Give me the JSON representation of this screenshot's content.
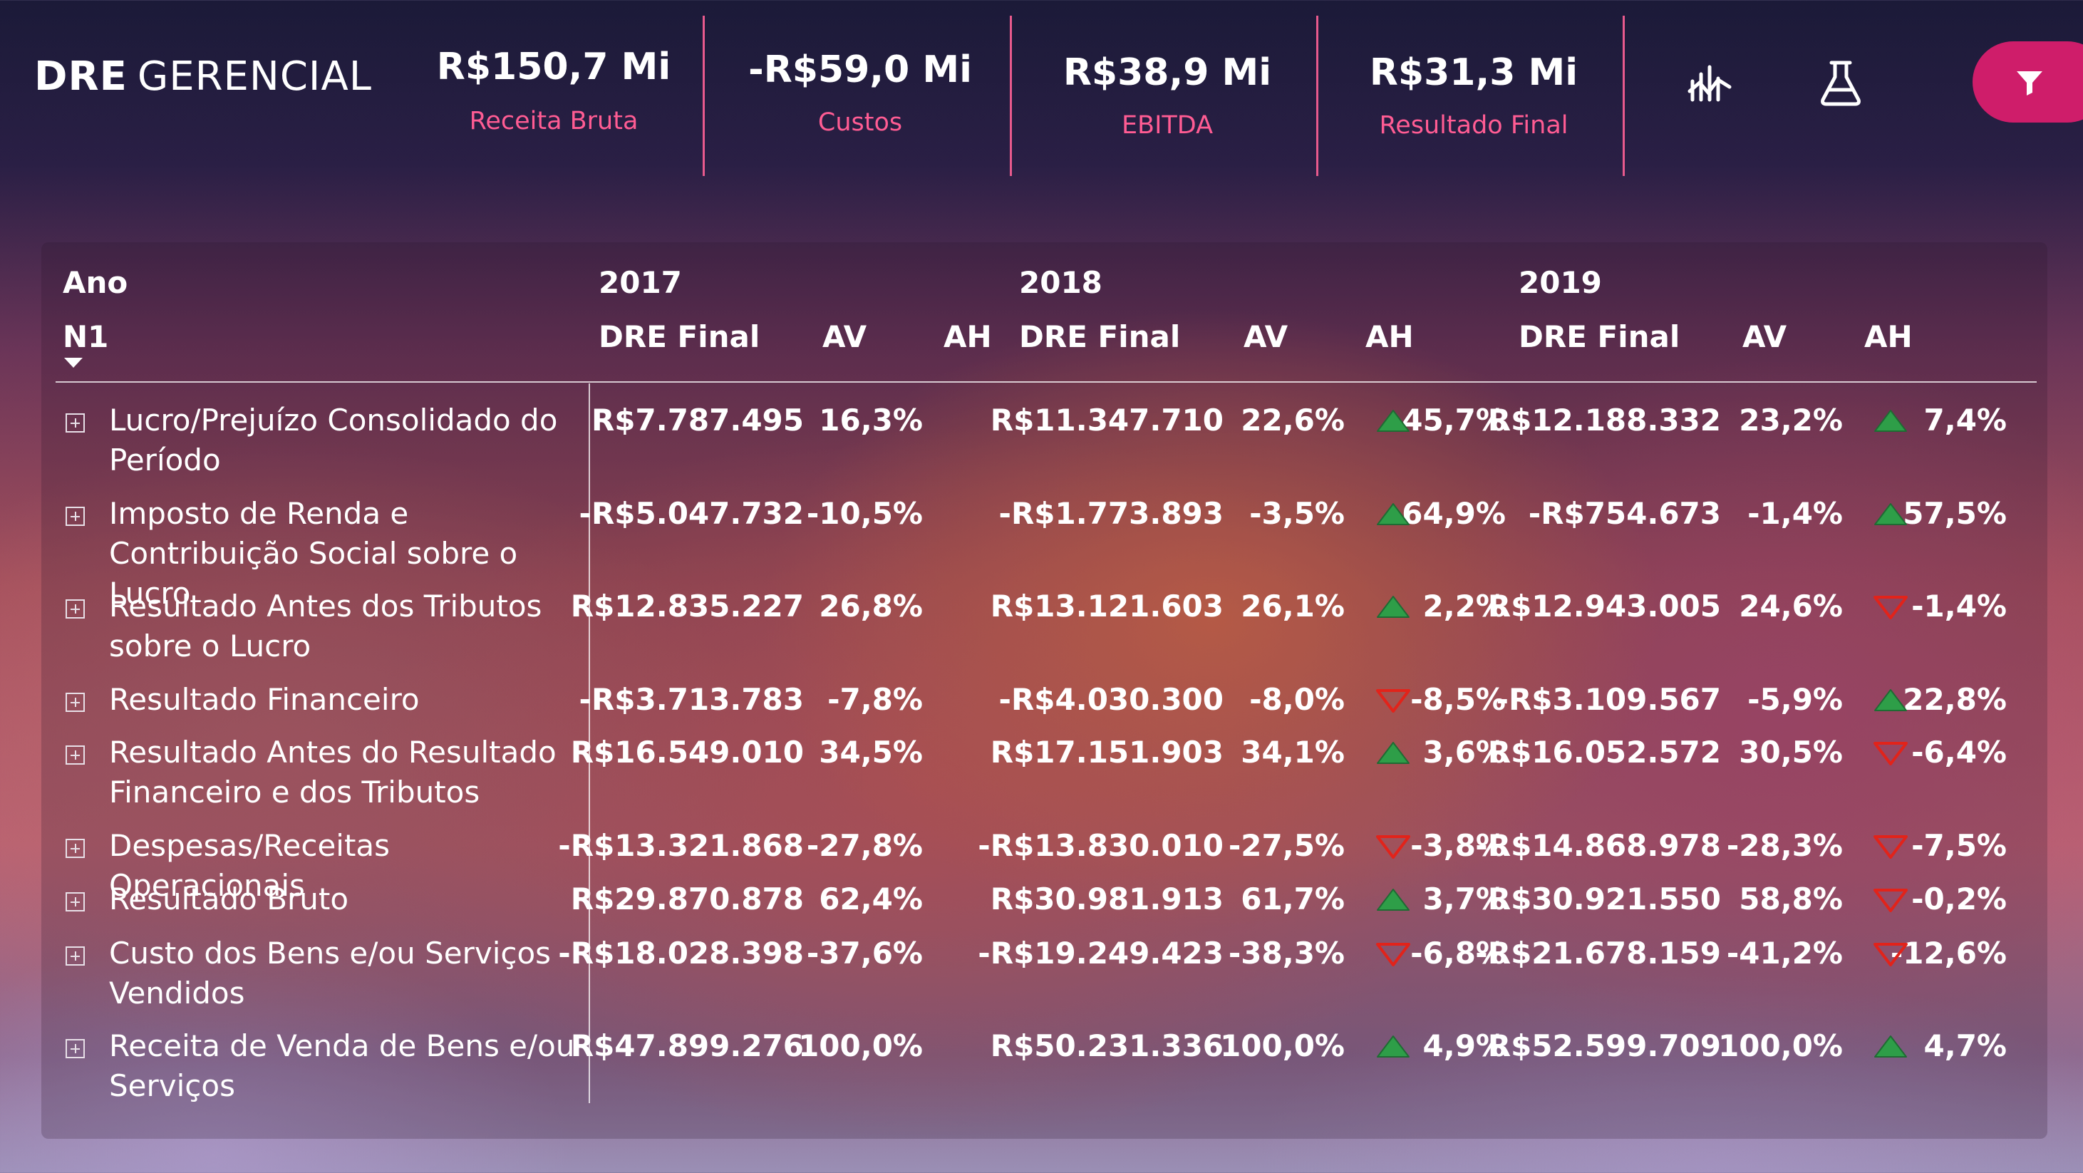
{
  "header": {
    "brand_bold": "DRE",
    "brand_light": "GERENCIAL",
    "kpis": [
      {
        "value": "R$150,7 Mi",
        "label": "Receita Bruta"
      },
      {
        "value": "-R$59,0 Mi",
        "label": "Custos"
      },
      {
        "value": "R$38,9 Mi",
        "label": "EBITDA"
      },
      {
        "value": "R$31,3 Mi",
        "label": "Resultado Final"
      }
    ],
    "icons": [
      "chart-analytics-icon",
      "flask-icon",
      "filter-icon"
    ],
    "accent_color": "#cf1d6a",
    "label_color": "#ff5c93"
  },
  "table": {
    "col_header_year": "Ano",
    "col_header_n1": "N1",
    "years": [
      "2017",
      "2018",
      "2019"
    ],
    "measure_headers": {
      "dre": "DRE Final",
      "av": "AV",
      "ah": "AH"
    },
    "up_color": "#2e9e48",
    "down_color": "#e2231a",
    "rows": [
      {
        "label": "Lucro/Prejuízo Consolidado do Período",
        "y2017": {
          "dre": "R$7.787.495",
          "av": "16,3%",
          "ah": ""
        },
        "y2018": {
          "dre": "R$11.347.710",
          "av": "22,6%",
          "ah": "45,7%",
          "trend": "up"
        },
        "y2019": {
          "dre": "R$12.188.332",
          "av": "23,2%",
          "ah": "7,4%",
          "trend": "up"
        }
      },
      {
        "label": "Imposto de Renda e Contribuição Social sobre o Lucro",
        "y2017": {
          "dre": "-R$5.047.732",
          "av": "-10,5%",
          "ah": ""
        },
        "y2018": {
          "dre": "-R$1.773.893",
          "av": "-3,5%",
          "ah": "64,9%",
          "trend": "up"
        },
        "y2019": {
          "dre": "-R$754.673",
          "av": "-1,4%",
          "ah": "57,5%",
          "trend": "up"
        }
      },
      {
        "label": "Resultado Antes dos Tributos sobre o Lucro",
        "y2017": {
          "dre": "R$12.835.227",
          "av": "26,8%",
          "ah": ""
        },
        "y2018": {
          "dre": "R$13.121.603",
          "av": "26,1%",
          "ah": "2,2%",
          "trend": "up"
        },
        "y2019": {
          "dre": "R$12.943.005",
          "av": "24,6%",
          "ah": "-1,4%",
          "trend": "down"
        }
      },
      {
        "label": "Resultado Financeiro",
        "y2017": {
          "dre": "-R$3.713.783",
          "av": "-7,8%",
          "ah": ""
        },
        "y2018": {
          "dre": "-R$4.030.300",
          "av": "-8,0%",
          "ah": "-8,5%",
          "trend": "down"
        },
        "y2019": {
          "dre": "-R$3.109.567",
          "av": "-5,9%",
          "ah": "22,8%",
          "trend": "up"
        }
      },
      {
        "label": "Resultado Antes do Resultado Financeiro e dos Tributos",
        "y2017": {
          "dre": "R$16.549.010",
          "av": "34,5%",
          "ah": ""
        },
        "y2018": {
          "dre": "R$17.151.903",
          "av": "34,1%",
          "ah": "3,6%",
          "trend": "up"
        },
        "y2019": {
          "dre": "R$16.052.572",
          "av": "30,5%",
          "ah": "-6,4%",
          "trend": "down"
        }
      },
      {
        "label": "Despesas/Receitas Operacionais",
        "y2017": {
          "dre": "-R$13.321.868",
          "av": "-27,8%",
          "ah": ""
        },
        "y2018": {
          "dre": "-R$13.830.010",
          "av": "-27,5%",
          "ah": "-3,8%",
          "trend": "down"
        },
        "y2019": {
          "dre": "-R$14.868.978",
          "av": "-28,3%",
          "ah": "-7,5%",
          "trend": "down"
        }
      },
      {
        "label": "Resultado Bruto",
        "y2017": {
          "dre": "R$29.870.878",
          "av": "62,4%",
          "ah": ""
        },
        "y2018": {
          "dre": "R$30.981.913",
          "av": "61,7%",
          "ah": "3,7%",
          "trend": "up"
        },
        "y2019": {
          "dre": "R$30.921.550",
          "av": "58,8%",
          "ah": "-0,2%",
          "trend": "down"
        }
      },
      {
        "label": "Custo dos Bens e/ou Serviços Vendidos",
        "y2017": {
          "dre": "-R$18.028.398",
          "av": "-37,6%",
          "ah": ""
        },
        "y2018": {
          "dre": "-R$19.249.423",
          "av": "-38,3%",
          "ah": "-6,8%",
          "trend": "down"
        },
        "y2019": {
          "dre": "-R$21.678.159",
          "av": "-41,2%",
          "ah": "-12,6%",
          "trend": "down"
        }
      },
      {
        "label": "Receita de Venda de Bens e/ou Serviços",
        "y2017": {
          "dre": "R$47.899.276",
          "av": "100,0%",
          "ah": ""
        },
        "y2018": {
          "dre": "R$50.231.336",
          "av": "100,0%",
          "ah": "4,9%",
          "trend": "up"
        },
        "y2019": {
          "dre": "R$52.599.709",
          "av": "100,0%",
          "ah": "4,7%",
          "trend": "up"
        }
      }
    ]
  }
}
